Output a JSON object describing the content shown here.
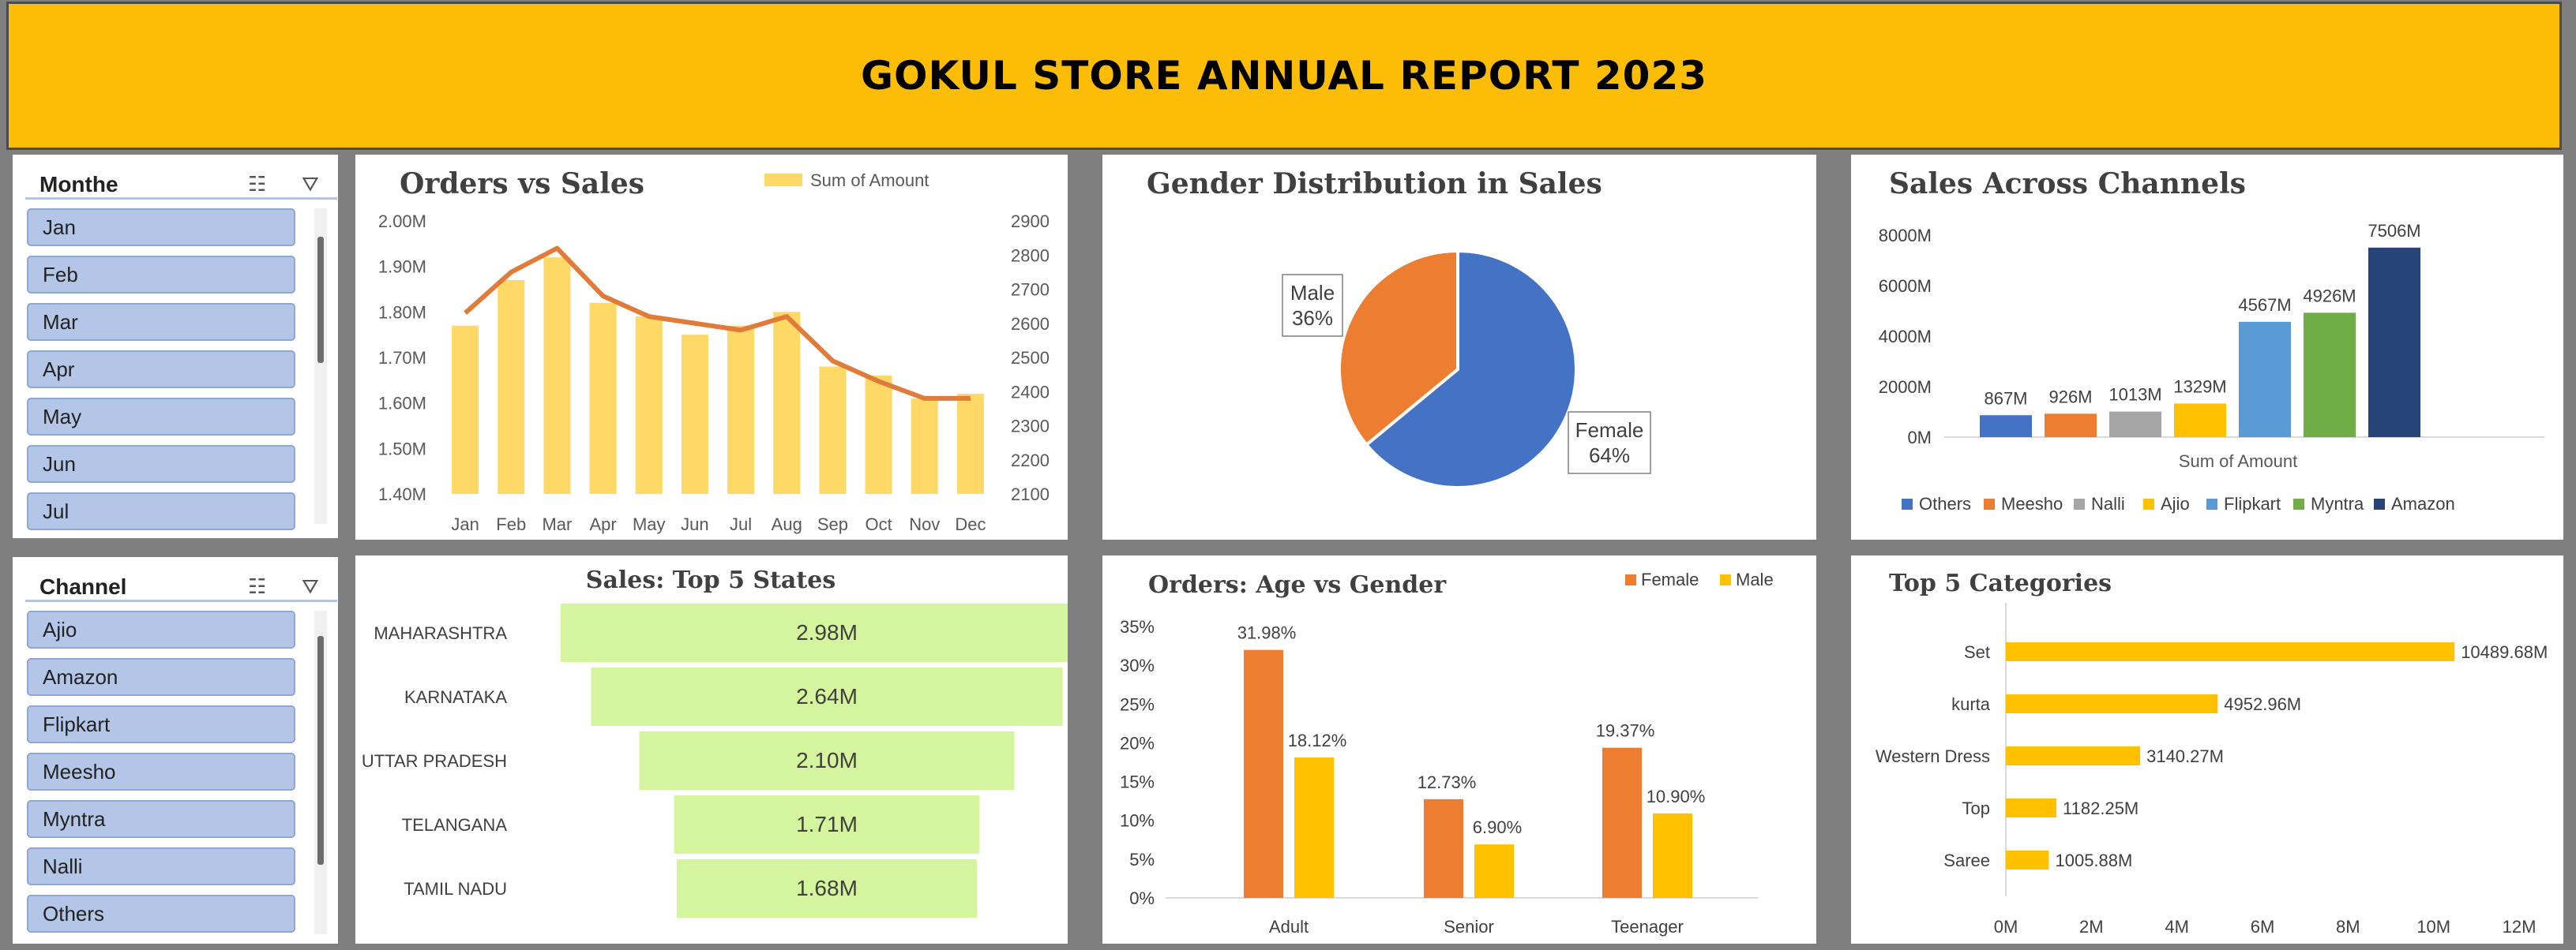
{
  "title": "GOKUL STORE ANNUAL REPORT 2023",
  "slicers": {
    "month": {
      "title": "Monthe",
      "items": [
        "Jan",
        "Feb",
        "Mar",
        "Apr",
        "May",
        "Jun",
        "Jul"
      ]
    },
    "channel": {
      "title": "Channel",
      "items": [
        "Ajio",
        "Amazon",
        "Flipkart",
        "Meesho",
        "Myntra",
        "Nalli",
        "Others"
      ]
    }
  },
  "icons": {
    "multiselect": "multi-select-icon",
    "clear": "clear-filter-icon"
  },
  "colors": {
    "header": "#fdbd06",
    "bar_yellow": "#ffd966",
    "line_orange": "#ed7d31",
    "blue": "#4472c4",
    "funnel": "#d4f59d",
    "orange": "#ed7d31",
    "gold": "#ffc000"
  },
  "chart_data": [
    {
      "id": "orders_vs_sales",
      "type": "bar",
      "title": "Orders vs Sales",
      "legend": [
        "Sum of Amount"
      ],
      "legend_position": "top-right",
      "categories": [
        "Jan",
        "Feb",
        "Mar",
        "Apr",
        "May",
        "Jun",
        "Jul",
        "Aug",
        "Sep",
        "Oct",
        "Nov",
        "Dec"
      ],
      "series": [
        {
          "name": "Sum of Amount",
          "type": "bar",
          "axis": "left",
          "values": [
            1.77,
            1.87,
            1.92,
            1.82,
            1.79,
            1.75,
            1.77,
            1.8,
            1.68,
            1.66,
            1.61,
            1.62
          ]
        },
        {
          "type": "line",
          "axis": "right",
          "values": [
            2630,
            2750,
            2820,
            2680,
            2620,
            2600,
            2580,
            2620,
            2490,
            2430,
            2380,
            2380
          ]
        }
      ],
      "y_left_ticks": [
        "2.00M",
        "1.90M",
        "1.80M",
        "1.70M",
        "1.60M",
        "1.50M",
        "1.40M"
      ],
      "y_left_range": [
        1.4,
        2.0
      ],
      "y_right_ticks": [
        "2900",
        "2800",
        "2700",
        "2600",
        "2500",
        "2400",
        "2300",
        "2200",
        "2100"
      ],
      "y_right_range": [
        2100,
        2900
      ]
    },
    {
      "id": "gender_distribution",
      "type": "pie",
      "title": "Gender Distribution in Sales",
      "slices": [
        {
          "name": "Female",
          "value": 64,
          "label": "64%"
        },
        {
          "name": "Male",
          "value": 36,
          "label": "36%"
        }
      ]
    },
    {
      "id": "sales_channels",
      "type": "bar",
      "title": "Sales Across Channels",
      "xlabel": "Sum of Amount",
      "categories": [
        "Others",
        "Meesho",
        "Nalli",
        "Ajio",
        "Flipkart",
        "Myntra",
        "Amazon"
      ],
      "values": [
        867,
        926,
        1013,
        1329,
        4567,
        4926,
        7506
      ],
      "data_labels": [
        "867M",
        "926M",
        "1013M",
        "1329M",
        "4567M",
        "4926M",
        "7506M"
      ],
      "y_ticks": [
        "8000M",
        "6000M",
        "4000M",
        "2000M",
        "0M"
      ],
      "ylim": [
        0,
        8000
      ],
      "legend_position": "bottom"
    },
    {
      "id": "top_states",
      "type": "bar",
      "title": "Sales: Top 5 States",
      "categories": [
        "MAHARASHTRA",
        "KARNATAKA",
        "UTTAR PRADESH",
        "TELANGANA",
        "TAMIL NADU"
      ],
      "values": [
        2.98,
        2.64,
        2.1,
        1.71,
        1.68
      ],
      "data_labels": [
        "2.98M",
        "2.64M",
        "2.10M",
        "1.71M",
        "1.68M"
      ]
    },
    {
      "id": "age_vs_gender",
      "type": "bar",
      "title": "Orders: Age vs Gender",
      "categories": [
        "Adult",
        "Senior",
        "Teenager"
      ],
      "series": [
        {
          "name": "Female",
          "values": [
            31.98,
            12.73,
            19.37
          ],
          "labels": [
            "31.98%",
            "12.73%",
            "19.37%"
          ]
        },
        {
          "name": "Male",
          "values": [
            18.12,
            6.9,
            10.9
          ],
          "labels": [
            "18.12%",
            "6.90%",
            "10.90%"
          ]
        }
      ],
      "y_ticks": [
        "35%",
        "30%",
        "25%",
        "20%",
        "15%",
        "10%",
        "5%",
        "0%"
      ],
      "ylim": [
        0,
        35
      ],
      "legend_position": "top-right"
    },
    {
      "id": "top_categories",
      "type": "bar",
      "title": "Top 5 Categories",
      "categories": [
        "Set",
        "kurta",
        "Western Dress",
        "Top",
        "Saree"
      ],
      "values": [
        10489.68,
        4952.96,
        3140.27,
        1182.25,
        1005.88
      ],
      "data_labels": [
        "10489.68M",
        "4952.96M",
        "3140.27M",
        "1182.25M",
        "1005.88M"
      ],
      "x_ticks": [
        "0M",
        "2M",
        "4M",
        "6M",
        "8M",
        "10M",
        "12M"
      ],
      "xlim": [
        0,
        12000
      ]
    }
  ]
}
